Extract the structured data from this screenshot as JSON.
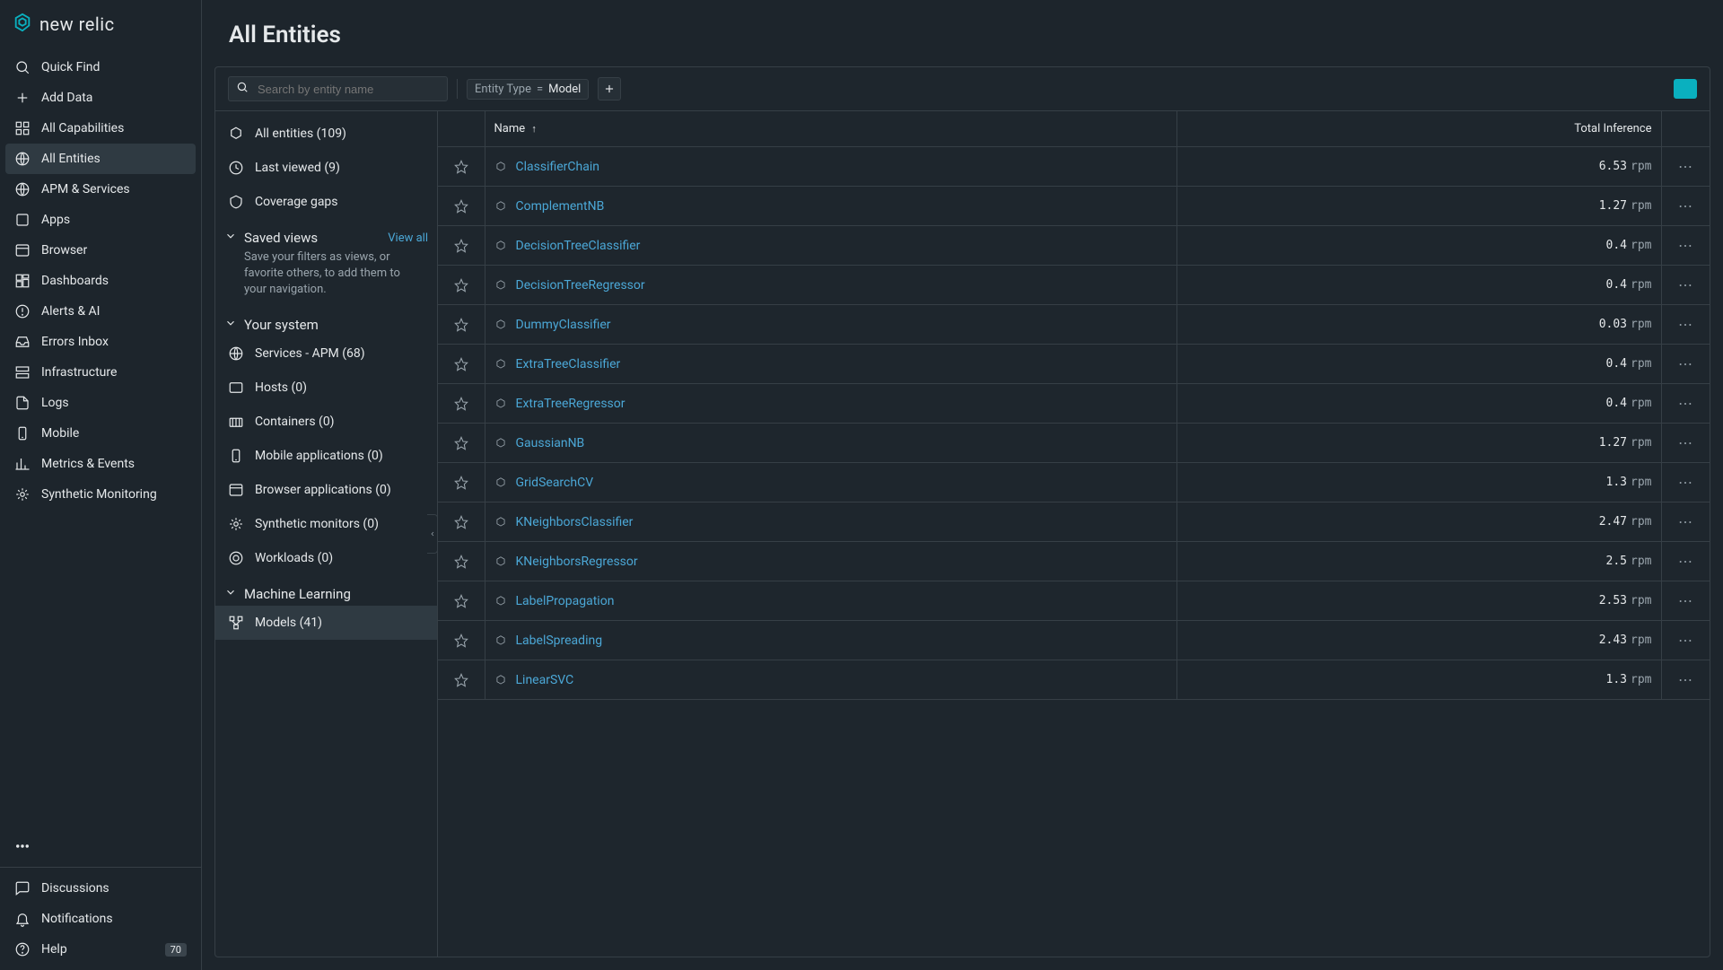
{
  "brand": "new relic",
  "page_title": "All Entities",
  "sidebar": {
    "items": [
      {
        "icon": "search",
        "label": "Quick Find"
      },
      {
        "icon": "plus",
        "label": "Add Data"
      },
      {
        "icon": "grid",
        "label": "All Capabilities"
      },
      {
        "icon": "globe",
        "label": "All Entities",
        "active": true
      },
      {
        "icon": "globe",
        "label": "APM & Services"
      },
      {
        "icon": "box",
        "label": "Apps"
      },
      {
        "icon": "browser",
        "label": "Browser"
      },
      {
        "icon": "dash",
        "label": "Dashboards"
      },
      {
        "icon": "alert",
        "label": "Alerts & AI"
      },
      {
        "icon": "inbox",
        "label": "Errors Inbox"
      },
      {
        "icon": "infra",
        "label": "Infrastructure"
      },
      {
        "icon": "file",
        "label": "Logs"
      },
      {
        "icon": "mobile",
        "label": "Mobile"
      },
      {
        "icon": "chart",
        "label": "Metrics & Events"
      },
      {
        "icon": "synth",
        "label": "Synthetic Monitoring"
      }
    ],
    "bottom": [
      {
        "icon": "chat",
        "label": "Discussions"
      },
      {
        "icon": "bell",
        "label": "Notifications"
      },
      {
        "icon": "help",
        "label": "Help",
        "badge": "70"
      }
    ]
  },
  "search": {
    "placeholder": "Search by entity name"
  },
  "filter_chip": {
    "key": "Entity Type",
    "op": "=",
    "value": "Model"
  },
  "filters_panel": {
    "top": [
      {
        "icon": "hex",
        "label": "All entities (109)"
      },
      {
        "icon": "clock",
        "label": "Last viewed (9)"
      },
      {
        "icon": "coverage",
        "label": "Coverage gaps"
      }
    ],
    "saved": {
      "title": "Saved views",
      "view_all": "View all",
      "desc": "Save your filters as views, or favorite others, to add them to your navigation."
    },
    "your_system": {
      "title": "Your system",
      "items": [
        {
          "icon": "globe",
          "label": "Services - APM (68)"
        },
        {
          "icon": "host",
          "label": "Hosts (0)"
        },
        {
          "icon": "container",
          "label": "Containers (0)"
        },
        {
          "icon": "mobile",
          "label": "Mobile applications (0)"
        },
        {
          "icon": "browser",
          "label": "Browser applications (0)"
        },
        {
          "icon": "synth",
          "label": "Synthetic monitors (0)"
        },
        {
          "icon": "workload",
          "label": "Workloads (0)"
        }
      ]
    },
    "ml": {
      "title": "Machine Learning",
      "items": [
        {
          "icon": "model",
          "label": "Models (41)",
          "active": true
        }
      ]
    }
  },
  "table": {
    "columns": {
      "name": "Name",
      "metric": "Total Inference"
    },
    "unit": "rpm",
    "rows": [
      {
        "name": "ClassifierChain",
        "value": "6.53"
      },
      {
        "name": "ComplementNB",
        "value": "1.27"
      },
      {
        "name": "DecisionTreeClassifier",
        "value": "0.4"
      },
      {
        "name": "DecisionTreeRegressor",
        "value": "0.4"
      },
      {
        "name": "DummyClassifier",
        "value": "0.03"
      },
      {
        "name": "ExtraTreeClassifier",
        "value": "0.4"
      },
      {
        "name": "ExtraTreeRegressor",
        "value": "0.4"
      },
      {
        "name": "GaussianNB",
        "value": "1.27"
      },
      {
        "name": "GridSearchCV",
        "value": "1.3"
      },
      {
        "name": "KNeighborsClassifier",
        "value": "2.47"
      },
      {
        "name": "KNeighborsRegressor",
        "value": "2.5"
      },
      {
        "name": "LabelPropagation",
        "value": "2.53"
      },
      {
        "name": "LabelSpreading",
        "value": "2.43"
      },
      {
        "name": "LinearSVC",
        "value": "1.3"
      }
    ]
  }
}
